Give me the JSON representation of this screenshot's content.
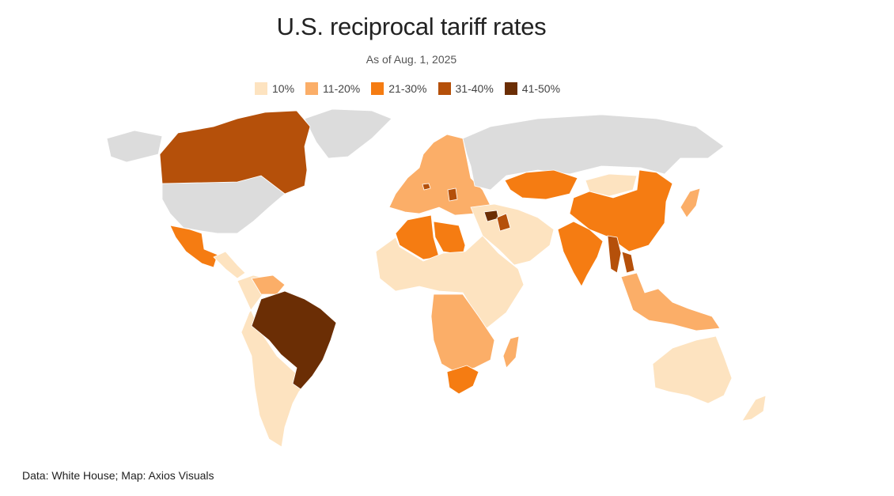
{
  "header": {
    "title": "U.S. reciprocal tariff rates",
    "subtitle": "As of Aug. 1, 2025"
  },
  "legend": [
    {
      "label": "10%",
      "color": "#fde3c0"
    },
    {
      "label": "11-20%",
      "color": "#fbae68"
    },
    {
      "label": "21-30%",
      "color": "#f57c12"
    },
    {
      "label": "31-40%",
      "color": "#b5500a"
    },
    {
      "label": "41-50%",
      "color": "#6b2e05"
    }
  ],
  "map": {
    "no_data_color": "#dcdcdc",
    "regions": [
      {
        "name": "Canada",
        "bin": "31-40%"
      },
      {
        "name": "United States",
        "bin": "none"
      },
      {
        "name": "Greenland",
        "bin": "none"
      },
      {
        "name": "Mexico",
        "bin": "21-30%"
      },
      {
        "name": "Central America",
        "bin": "10%"
      },
      {
        "name": "Brazil",
        "bin": "41-50%"
      },
      {
        "name": "South America",
        "bin": "10%"
      },
      {
        "name": "Venezuela",
        "bin": "11-20%"
      },
      {
        "name": "Europe",
        "bin": "11-20%"
      },
      {
        "name": "Switzerland",
        "bin": "31-40%"
      },
      {
        "name": "Serbia",
        "bin": "31-40%"
      },
      {
        "name": "Russia",
        "bin": "none"
      },
      {
        "name": "Algeria",
        "bin": "21-30%"
      },
      {
        "name": "Libya",
        "bin": "21-30%"
      },
      {
        "name": "Syria",
        "bin": "41-50%"
      },
      {
        "name": "Iraq",
        "bin": "31-40%"
      },
      {
        "name": "Africa",
        "bin": "10%"
      },
      {
        "name": "Central Africa",
        "bin": "11-20%"
      },
      {
        "name": "South Africa",
        "bin": "21-30%"
      },
      {
        "name": "Madagascar",
        "bin": "11-20%"
      },
      {
        "name": "Middle East",
        "bin": "10%"
      },
      {
        "name": "Kazakhstan",
        "bin": "21-30%"
      },
      {
        "name": "Mongolia",
        "bin": "10%"
      },
      {
        "name": "China",
        "bin": "21-30%"
      },
      {
        "name": "India",
        "bin": "21-30%"
      },
      {
        "name": "Myanmar",
        "bin": "31-40%"
      },
      {
        "name": "Laos",
        "bin": "31-40%"
      },
      {
        "name": "Southeast Asia",
        "bin": "11-20%"
      },
      {
        "name": "Japan",
        "bin": "11-20%"
      },
      {
        "name": "Australia",
        "bin": "10%"
      },
      {
        "name": "New Zealand",
        "bin": "10%"
      }
    ]
  },
  "footer": {
    "source": "Data: White House; Map: Axios Visuals"
  }
}
